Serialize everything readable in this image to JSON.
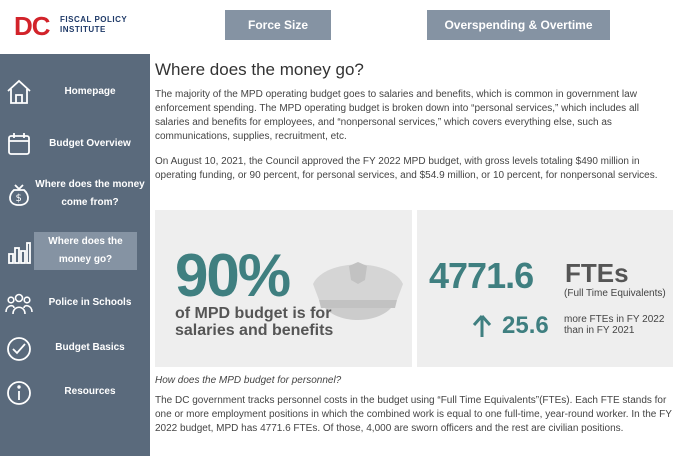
{
  "header": {
    "logo_mark": "DC",
    "logo_line1": "FISCAL POLICY",
    "logo_line2": "INSTITUTE",
    "force_size_label": "Force Size",
    "overspending_label": "Overspending & Overtime"
  },
  "sidebar": {
    "items": [
      {
        "label": "Homepage",
        "icon": "home-icon"
      },
      {
        "label": "Budget Overview",
        "icon": "calendar-icon"
      },
      {
        "label": "Where does the money come from?",
        "icon": "money-bag-icon"
      },
      {
        "label": "Where does the money go?",
        "icon": "bar-chart-icon",
        "active": true
      },
      {
        "label": "Police in Schools",
        "icon": "people-icon"
      },
      {
        "label": "Budget Basics",
        "icon": "checkmark-icon"
      },
      {
        "label": "Resources",
        "icon": "info-icon"
      }
    ]
  },
  "main": {
    "title": "Where does the money go?",
    "para1": "The majority of the MPD operating budget goes to salaries and benefits, which is common in government law enforcement spending. The MPD operating budget is broken down into “personal services,” which includes all salaries and benefits for employees, and “nonpersonal services,” which covers everything else, such as communications, supplies, recruitment, etc.",
    "para2": "On August 10, 2021, the Council approved  the FY 2022 MPD budget, with gross levels totaling $490 million in operating funding, or 90 percent, for personal services, and $54.9 million, or 10 percent, for nonpersonal services.",
    "stat_pct": "90%",
    "stat_pct_caption": "of MPD budget is for salaries and benefits",
    "fte_value": "4771.6",
    "fte_unit": "FTEs",
    "fte_sub": "(Full Time Equivalents)",
    "fte_diff": "25.6",
    "fte_diff_text": "more FTEs in FY 2022 than in FY 2021",
    "subhead": "How does the MPD budget for personnel?",
    "para3": "The DC government tracks personnel costs in the budget using “Full Time Equivalents”(FTEs). Each FTE stands for one or more employment positions in which the combined work is equal to one full-time, year-round worker. In the FY 2022 budget, MPD has 4771.6 FTEs. Of those, 4,000 are sworn officers and the rest are civilian positions."
  },
  "colors": {
    "sidebar_bg": "#5a6a7c",
    "button_bg": "#8593a3",
    "accent_teal": "#3f7f80",
    "logo_red": "#d2232a",
    "logo_navy": "#1f3a68",
    "card_bg": "#eeeeee"
  }
}
